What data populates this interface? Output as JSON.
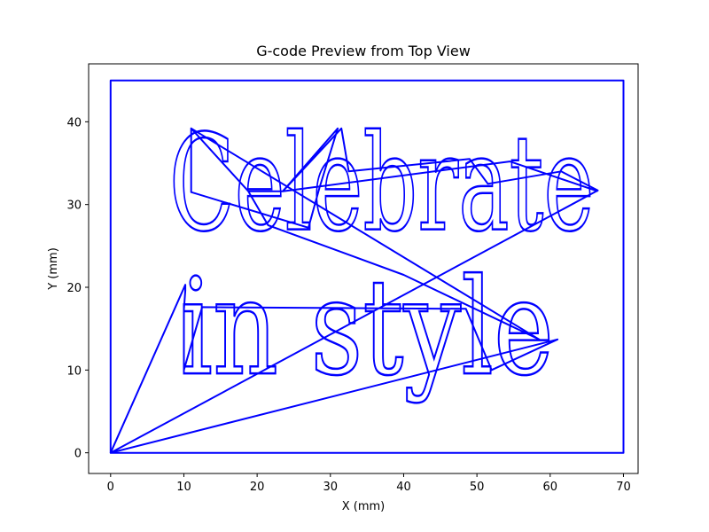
{
  "chart_data": {
    "type": "line",
    "title": "G-code Preview from Top View",
    "xlabel": "X (mm)",
    "ylabel": "Y (mm)",
    "xlim": [
      -3,
      72
    ],
    "ylim": [
      -2.5,
      47
    ],
    "xticks": [
      0,
      10,
      20,
      30,
      40,
      50,
      60,
      70
    ],
    "yticks": [
      0,
      10,
      20,
      30,
      40
    ],
    "grid": false,
    "line_color": "#0000ff",
    "engraved_text": [
      "Celebrate",
      "in style"
    ],
    "series": [
      {
        "role": "frame",
        "points": [
          [
            0,
            0
          ],
          [
            0,
            45
          ],
          [
            70,
            45
          ],
          [
            70,
            0
          ],
          [
            0,
            0
          ]
        ]
      },
      {
        "role": "travel",
        "points": [
          [
            0,
            0
          ],
          [
            10.2,
            20.3
          ],
          [
            10.2,
            19.6
          ],
          [
            10,
            17.3
          ],
          [
            10,
            10
          ],
          [
            12.5,
            17.6
          ],
          [
            48.5,
            17.4
          ],
          [
            52,
            10
          ],
          [
            61,
            13.7
          ],
          [
            0,
            0
          ],
          [
            66.5,
            31.7
          ],
          [
            61.5,
            34
          ],
          [
            51.5,
            32.5
          ],
          [
            49,
            35.5
          ],
          [
            32.5,
            34
          ],
          [
            31.5,
            39.2
          ],
          [
            23.5,
            31.6
          ],
          [
            18.8,
            31.6
          ],
          [
            11,
            39.2
          ],
          [
            58.5,
            13.7
          ],
          [
            40,
            21.5
          ],
          [
            21.5,
            27.5
          ],
          [
            18.8,
            31.6
          ],
          [
            11,
            39.2
          ],
          [
            11,
            31.5
          ],
          [
            27,
            27.2
          ],
          [
            28.5,
            32
          ],
          [
            31,
            39.2
          ],
          [
            23.5,
            31.6
          ],
          [
            54.5,
            35.2
          ],
          [
            66.5,
            31.6
          ]
        ]
      }
    ]
  }
}
